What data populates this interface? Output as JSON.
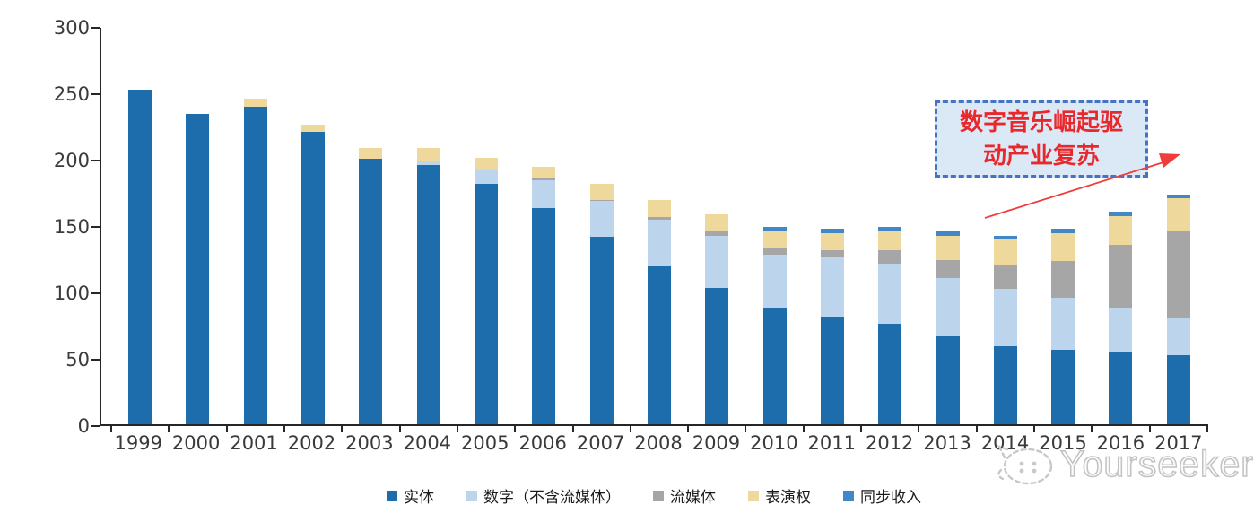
{
  "chart_data": {
    "type": "bar",
    "stacked": true,
    "title": "",
    "xlabel": "",
    "ylabel": "",
    "ylim": [
      0,
      300
    ],
    "yticks": [
      0,
      50,
      100,
      150,
      200,
      250,
      300
    ],
    "grid": false,
    "legend_position": "bottom",
    "categories": [
      "1999",
      "2000",
      "2001",
      "2002",
      "2003",
      "2004",
      "2005",
      "2006",
      "2007",
      "2008",
      "2009",
      "2010",
      "2011",
      "2012",
      "2013",
      "2014",
      "2015",
      "2016",
      "2017"
    ],
    "series": [
      {
        "key": "physical",
        "name": "实体",
        "color": "#1d6cac",
        "values": [
          252,
          234,
          239,
          220,
          200,
          195,
          181,
          163,
          141,
          119,
          103,
          88,
          81,
          76,
          66,
          59,
          56,
          55,
          52
        ]
      },
      {
        "key": "digital-excl-streaming",
        "name": "数字（不含流媒体）",
        "color": "#bdd5ec",
        "values": [
          0,
          0,
          0,
          0,
          0,
          4,
          10,
          21,
          27,
          35,
          39,
          40,
          45,
          45,
          44,
          43,
          39,
          33,
          28
        ]
      },
      {
        "key": "streaming",
        "name": "流媒体",
        "color": "#a6a6a6",
        "values": [
          0,
          0,
          0,
          0,
          0,
          0,
          1,
          1,
          1,
          2,
          3,
          5,
          5,
          10,
          14,
          18,
          28,
          47,
          66
        ]
      },
      {
        "key": "performance-rights",
        "name": "表演权",
        "color": "#eed89b",
        "values": [
          0,
          0,
          6,
          6,
          8,
          9,
          9,
          9,
          12,
          13,
          13,
          13,
          13,
          15,
          18,
          19,
          21,
          22,
          24
        ]
      },
      {
        "key": "sync",
        "name": "同步收入",
        "color": "#4288c6",
        "values": [
          0,
          0,
          0,
          0,
          0,
          0,
          0,
          0,
          0,
          0,
          0,
          3,
          3,
          3,
          3,
          3,
          3,
          3,
          3
        ]
      }
    ]
  },
  "annotation": {
    "lines": [
      "数字音乐崛起驱",
      "动产业复苏"
    ],
    "text": "数字音乐崛起驱动产业复苏",
    "text_color": "#e8282b",
    "border_color": "#4472c4",
    "fill_color": "#dbe8f6",
    "arrow_color": "#f23b3b"
  },
  "watermark": {
    "text": "Yourseeker",
    "logo": "cat-logo-icon",
    "color": "#c2c2c2"
  },
  "axis_colors": {
    "line": "#262626",
    "label": "#3a3a3a"
  }
}
